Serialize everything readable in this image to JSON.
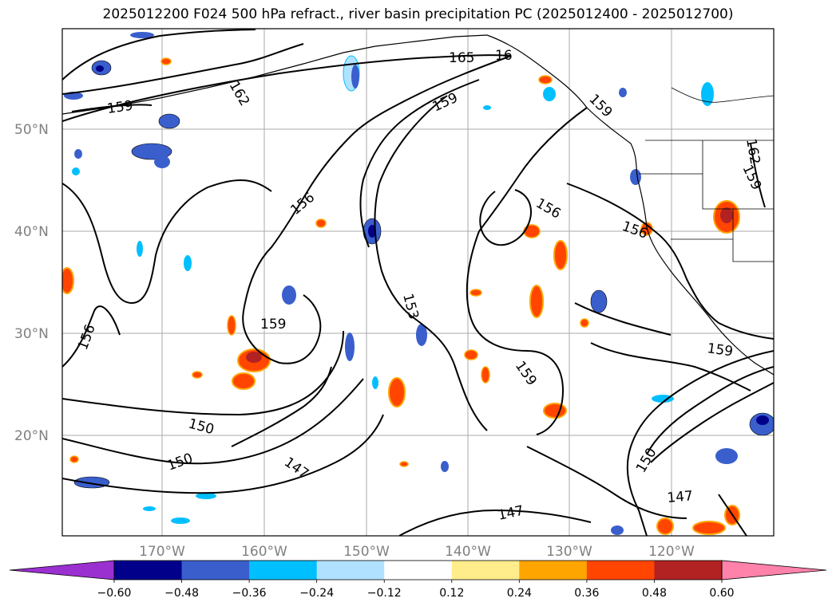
{
  "title": "2025012200 F024 500 hPa refract., river basin precipitation PC (2025012400 - 2025012700)",
  "lat_labels": [
    "50°N",
    "40°N",
    "30°N",
    "20°N"
  ],
  "lon_labels": [
    "170°W",
    "160°W",
    "150°W",
    "140°W",
    "130°W",
    "120°W"
  ],
  "contour_labels": [
    "165",
    "16",
    "159",
    "162",
    "159",
    "156",
    "156",
    "153",
    "159",
    "156",
    "159",
    "159",
    "159",
    "150",
    "150",
    "147",
    "150",
    "147",
    "147",
    "162",
    "159",
    "156"
  ],
  "colorbar": {
    "ticks": [
      "−0.60",
      "−0.48",
      "−0.36",
      "−0.24",
      "−0.12",
      "0.12",
      "0.24",
      "0.36",
      "0.48",
      "0.60"
    ],
    "colors": [
      "#9b30d0",
      "#00008b",
      "#3a5fcd",
      "#00bfff",
      "#b0e2ff",
      "#ffffff",
      "#ffec8b",
      "#ffa500",
      "#ff4500",
      "#b22222",
      "#ff82ab"
    ]
  },
  "colors": {
    "grid": "#aaaaaa",
    "contour": "#000000",
    "coast": "#000000"
  }
}
